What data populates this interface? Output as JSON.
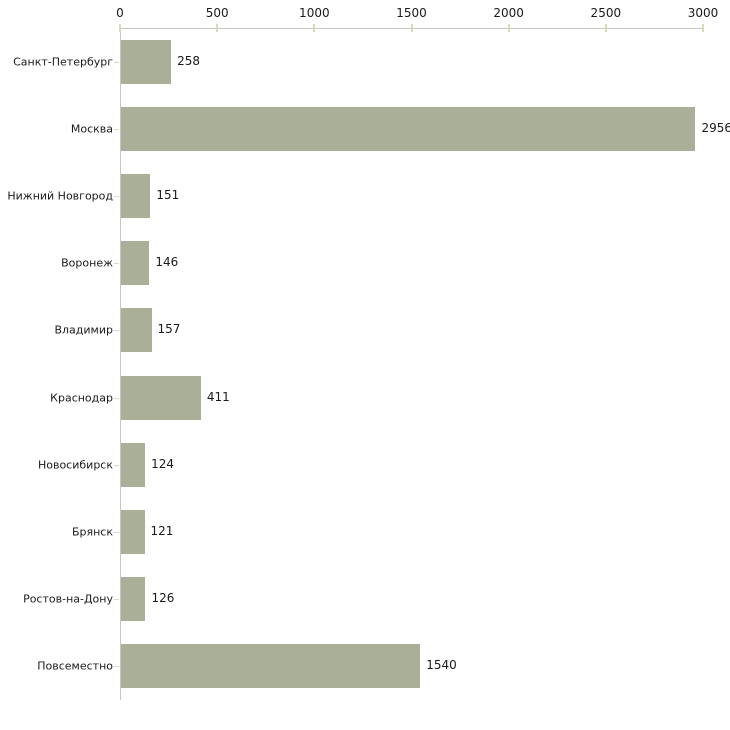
{
  "chart_data": {
    "type": "bar",
    "orientation": "horizontal",
    "categories": [
      "Санкт-Петербург",
      "Москва",
      "Нижний Новгород",
      "Воронеж",
      "Владимир",
      "Краснодар",
      "Новосибирск",
      "Брянск",
      "Ростов-на-Дону",
      "Повсеместно"
    ],
    "values": [
      258,
      2956,
      151,
      146,
      157,
      411,
      124,
      121,
      126,
      1540
    ],
    "value_labels": [
      "258",
      "2956",
      "151",
      "146",
      "157",
      "411",
      "124",
      "121",
      "126",
      "1540"
    ],
    "title": "",
    "xlabel": "",
    "ylabel": "",
    "xlim": [
      0,
      3000
    ],
    "x_ticks": [
      0,
      500,
      1000,
      1500,
      2000,
      2500,
      3000
    ],
    "x_tick_labels": [
      "0",
      "500",
      "1000",
      "1500",
      "2000",
      "2500",
      "3000"
    ],
    "axis_position": "top",
    "grid": false,
    "legend": false,
    "bar_color": "#aab098",
    "axis_line_color": "#c6c6c6",
    "tick_mark_color": "#d8dabc",
    "text_color": "#1a1a1a",
    "background_color": "#ffffff"
  }
}
